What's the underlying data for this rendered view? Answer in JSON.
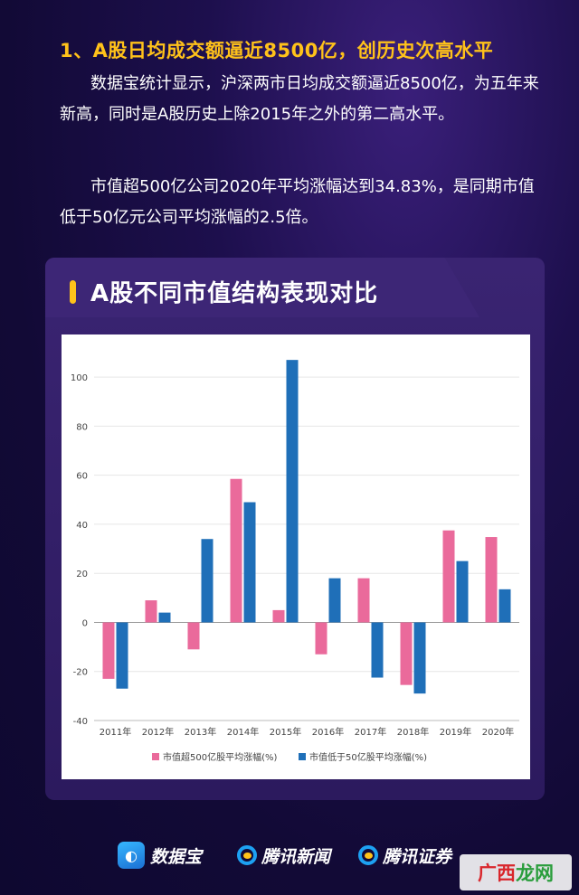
{
  "headline": "1、A股日均成交额逼近8500亿，创历史次高水平",
  "paragraph1": "数据宝统计显示，沪深两市日均成交额逼近8500亿，为五年来新高，同时是A股历史上除2015年之外的第二高水平。",
  "paragraph2": "市值超500亿公司2020年平均涨幅达到34.83%，是同期市值低于50亿元公司平均涨幅的2.5倍。",
  "panel_title": "A股不同市值结构表现对比",
  "colors": {
    "accent": "#ffc21a",
    "series_pink": "#ea6a9b",
    "series_blue": "#1f6fb8"
  },
  "chart_data": {
    "type": "bar",
    "title": "",
    "xlabel": "",
    "ylabel": "",
    "categories": [
      "2011年",
      "2012年",
      "2013年",
      "2014年",
      "2015年",
      "2016年",
      "2017年",
      "2018年",
      "2019年",
      "2020年"
    ],
    "series": [
      {
        "name": "市值超500亿股平均涨幅(%)",
        "color": "#ea6a9b",
        "values": [
          -23,
          9,
          -11,
          58.5,
          5,
          -13,
          18,
          -25.5,
          37.5,
          34.8
        ]
      },
      {
        "name": "市值低于50亿股平均涨幅(%)",
        "color": "#1f6fb8",
        "values": [
          -27,
          4,
          34,
          49,
          107,
          18,
          -22.5,
          -29,
          25,
          13.5
        ]
      }
    ],
    "yticks": [
      100,
      80,
      60,
      40,
      20,
      0,
      -20,
      -40
    ],
    "ylim": [
      -40,
      110
    ],
    "grid": true,
    "legend": "bottom"
  },
  "footer": {
    "brands": [
      "数据宝",
      "腾讯新闻",
      "腾讯证券"
    ],
    "watermark_a": "广西",
    "watermark_b": "龙网"
  }
}
